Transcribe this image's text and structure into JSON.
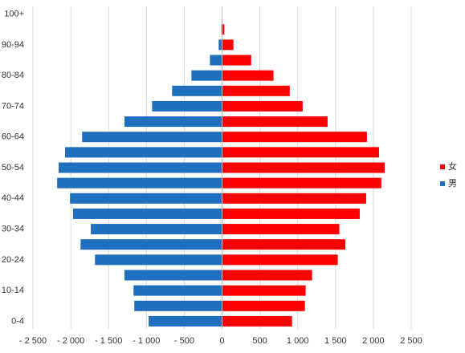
{
  "chart_data": {
    "type": "pyramid",
    "categories": [
      "0-4",
      null,
      "10-14",
      null,
      "20-24",
      null,
      "30-34",
      null,
      "40-44",
      null,
      "50-54",
      null,
      "60-64",
      null,
      "70-74",
      null,
      "80-84",
      null,
      "90-94",
      null,
      "100+"
    ],
    "series": [
      {
        "name": "女",
        "color": "#ff0000",
        "values": [
          925,
          1095,
          1105,
          1190,
          1530,
          1630,
          1550,
          1820,
          1905,
          2105,
          2150,
          2075,
          1915,
          1395,
          1065,
          895,
          680,
          385,
          150,
          30,
          3
        ]
      },
      {
        "name": "男",
        "color": "#1f6fbf",
        "values": [
          -970,
          -1160,
          -1170,
          -1290,
          -1680,
          -1870,
          -1735,
          -1970,
          -2010,
          -2180,
          -2160,
          -2075,
          -1850,
          -1290,
          -925,
          -660,
          -405,
          -160,
          -45,
          -10,
          -5
        ]
      }
    ],
    "xlim": [
      -2500,
      2500
    ],
    "xticks": [
      {
        "value": -2500,
        "label": "- 2 500"
      },
      {
        "value": -2000,
        "label": "- 2 000"
      },
      {
        "value": -1500,
        "label": "- 1 500"
      },
      {
        "value": -1000,
        "label": "- 1 000"
      },
      {
        "value": -500,
        "label": "- 500"
      },
      0,
      500,
      {
        "value": 1000,
        "label": "1 000"
      },
      {
        "value": 1500,
        "label": "1 500"
      },
      {
        "value": 2000,
        "label": "2 000"
      },
      {
        "value": 2500,
        "label": "2 500"
      }
    ],
    "grid": true,
    "legend": "right"
  }
}
